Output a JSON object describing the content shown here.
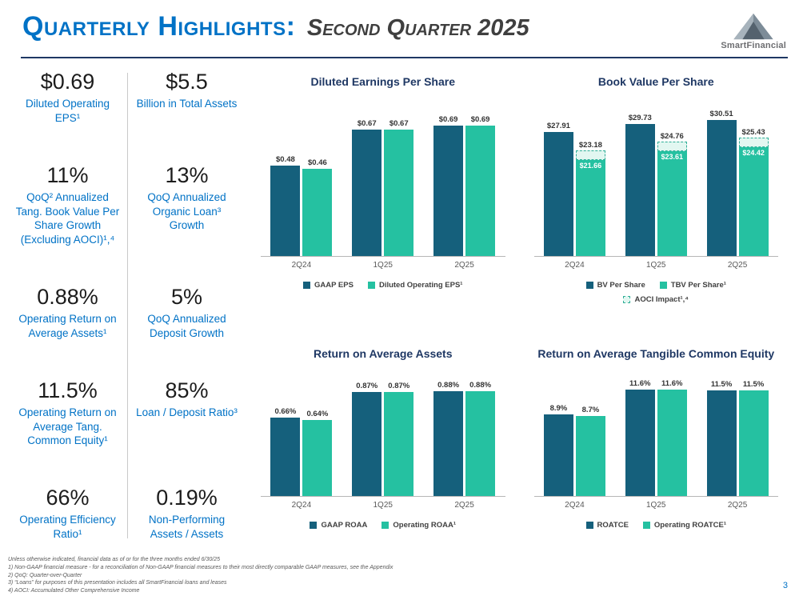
{
  "slide": {
    "title_main": "Quarterly Highlights:",
    "title_sub": "Second Quarter 2025",
    "logo_text": "SmartFinancial",
    "page_number": "3"
  },
  "colors": {
    "accent_blue": "#0072C6",
    "navy": "#1F3864",
    "bar_dark": "#15607C",
    "bar_green": "#25C1A1",
    "aoci_fill": "#E2F7F1",
    "aoci_border": "#2FAE97"
  },
  "metrics": [
    {
      "value": "$0.69",
      "label": "Diluted Operating EPS¹"
    },
    {
      "value": "$5.5",
      "label": "Billion in Total Assets"
    },
    {
      "value": "11%",
      "label": "QoQ² Annualized Tang. Book Value Per Share Growth (Excluding AOCI)¹,⁴"
    },
    {
      "value": "13%",
      "label": "QoQ Annualized Organic Loan³ Growth"
    },
    {
      "value": "0.88%",
      "label": "Operating Return on Average Assets¹"
    },
    {
      "value": "5%",
      "label": "QoQ Annualized Deposit Growth"
    },
    {
      "value": "11.5%",
      "label": "Operating Return on Average Tang. Common Equity¹"
    },
    {
      "value": "85%",
      "label": "Loan / Deposit Ratio³"
    },
    {
      "value": "66%",
      "label": "Operating Efficiency Ratio¹"
    },
    {
      "value": "0.19%",
      "label": "Non-Performing Assets / Assets"
    }
  ],
  "chart_data": [
    {
      "type": "bar",
      "title": "Diluted Earnings Per Share",
      "categories": [
        "2Q24",
        "1Q25",
        "2Q25"
      ],
      "series": [
        {
          "name": "GAAP EPS",
          "role": "dark",
          "values": [
            0.48,
            0.67,
            0.69
          ],
          "labels": [
            "$0.48",
            "$0.67",
            "$0.69"
          ]
        },
        {
          "name": "Diluted Operating EPS¹",
          "role": "green",
          "values": [
            0.46,
            0.67,
            0.69
          ],
          "labels": [
            "$0.46",
            "$0.67",
            "$0.69"
          ]
        }
      ],
      "ylim": [
        0,
        0.8
      ],
      "legend_position": "bottom",
      "grid": false
    },
    {
      "type": "bar-aoci",
      "title": "Book Value Per Share",
      "categories": [
        "2Q24",
        "1Q25",
        "2Q25"
      ],
      "series": [
        {
          "name": "BV Per Share",
          "role": "dark",
          "values": [
            27.91,
            29.73,
            30.51
          ],
          "labels": [
            "$27.91",
            "$29.73",
            "$30.51"
          ]
        },
        {
          "name": "TBV Per Share¹",
          "role": "green",
          "values": [
            21.66,
            23.61,
            24.42
          ],
          "labels": [
            "$21.66",
            "$23.61",
            "$24.42"
          ]
        },
        {
          "name": "AOCI Impact¹,⁴",
          "role": "aoci",
          "values": [
            23.18,
            24.76,
            25.43
          ],
          "labels": [
            "$23.18",
            "$24.76",
            "$25.43"
          ]
        }
      ],
      "ylim": [
        0,
        34
      ],
      "legend_position": "bottom",
      "grid": false
    },
    {
      "type": "bar",
      "title": "Return on Average Assets",
      "categories": [
        "2Q24",
        "1Q25",
        "2Q25"
      ],
      "series": [
        {
          "name": "GAAP ROAA",
          "role": "dark",
          "values": [
            0.66,
            0.87,
            0.88
          ],
          "labels": [
            "0.66%",
            "0.87%",
            "0.88%"
          ]
        },
        {
          "name": "Operating ROAA¹",
          "role": "green",
          "values": [
            0.64,
            0.87,
            0.88
          ],
          "labels": [
            "0.64%",
            "0.87%",
            "0.88%"
          ]
        }
      ],
      "ylim": [
        0,
        1.0
      ],
      "legend_position": "bottom",
      "grid": false
    },
    {
      "type": "bar",
      "title": "Return on Average Tangible Common Equity",
      "categories": [
        "2Q24",
        "1Q25",
        "2Q25"
      ],
      "series": [
        {
          "name": "ROATCE",
          "role": "dark",
          "values": [
            8.9,
            11.6,
            11.5
          ],
          "labels": [
            "8.9%",
            "11.6%",
            "11.5%"
          ]
        },
        {
          "name": "Operating ROATCE¹",
          "role": "green",
          "values": [
            8.7,
            11.6,
            11.5
          ],
          "labels": [
            "8.7%",
            "11.6%",
            "11.5%"
          ]
        }
      ],
      "ylim": [
        0,
        13
      ],
      "legend_position": "bottom",
      "grid": false
    }
  ],
  "footnotes": [
    "Unless otherwise indicated, financial data as of or for the three months ended 6/30/25",
    "1)  Non-GAAP financial measure - for a reconciliation of Non-GAAP financial measures to their most directly comparable GAAP measures, see the Appendix",
    "2)  QoQ: Quarter-over-Quarter",
    "3)  “Loans” for purposes of this presentation includes all SmartFinancial loans and leases",
    "4)  AOCI: Accumulated Other Comprehensive Income"
  ]
}
